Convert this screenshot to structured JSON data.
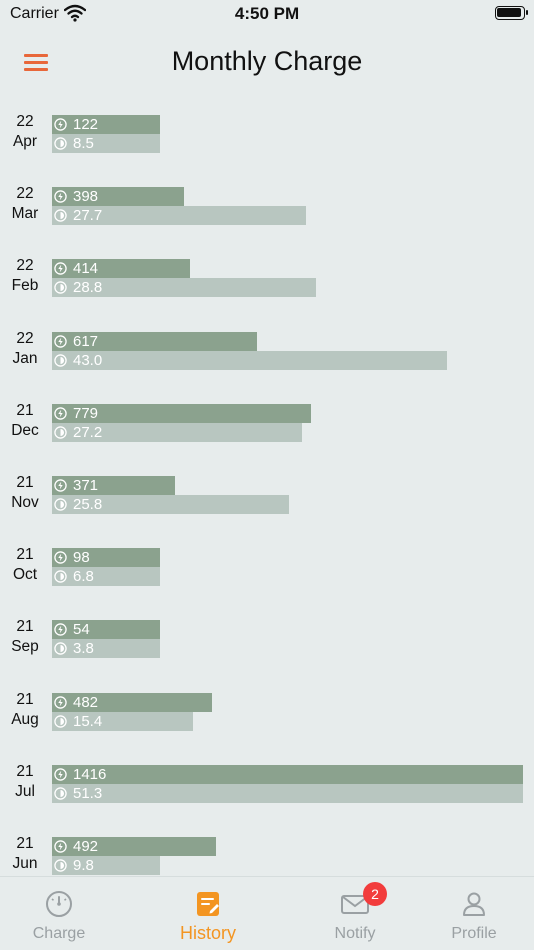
{
  "status": {
    "carrier": "Carrier",
    "time": "4:50 PM"
  },
  "header": {
    "title": "Monthly Charge"
  },
  "colors": {
    "energy_bar": "#8ba28e",
    "cost_bar": "#b8c6c0",
    "accent": "#e8673a",
    "tab_active": "#f39522",
    "badge": "#f23c3c"
  },
  "months": [
    {
      "year": "22",
      "month": "Apr",
      "energy": "122",
      "cost": "8.5"
    },
    {
      "year": "22",
      "month": "Mar",
      "energy": "398",
      "cost": "27.7"
    },
    {
      "year": "22",
      "month": "Feb",
      "energy": "414",
      "cost": "28.8"
    },
    {
      "year": "22",
      "month": "Jan",
      "energy": "617",
      "cost": "43.0"
    },
    {
      "year": "21",
      "month": "Dec",
      "energy": "779",
      "cost": "27.2"
    },
    {
      "year": "21",
      "month": "Nov",
      "energy": "371",
      "cost": "25.8"
    },
    {
      "year": "21",
      "month": "Oct",
      "energy": "98",
      "cost": "6.8"
    },
    {
      "year": "21",
      "month": "Sep",
      "energy": "54",
      "cost": "3.8"
    },
    {
      "year": "21",
      "month": "Aug",
      "energy": "482",
      "cost": "15.4"
    },
    {
      "year": "21",
      "month": "Jul",
      "energy": "1416",
      "cost": "51.3"
    },
    {
      "year": "21",
      "month": "Jun",
      "energy": "492",
      "cost": "9.8"
    }
  ],
  "tabs": [
    {
      "label": "Charge",
      "icon": "gauge-icon",
      "active": false
    },
    {
      "label": "History",
      "icon": "history-note-icon",
      "active": true
    },
    {
      "label": "Notify",
      "icon": "envelope-icon",
      "active": false,
      "badge": "2"
    },
    {
      "label": "Profile",
      "icon": "person-icon",
      "active": false
    }
  ]
}
